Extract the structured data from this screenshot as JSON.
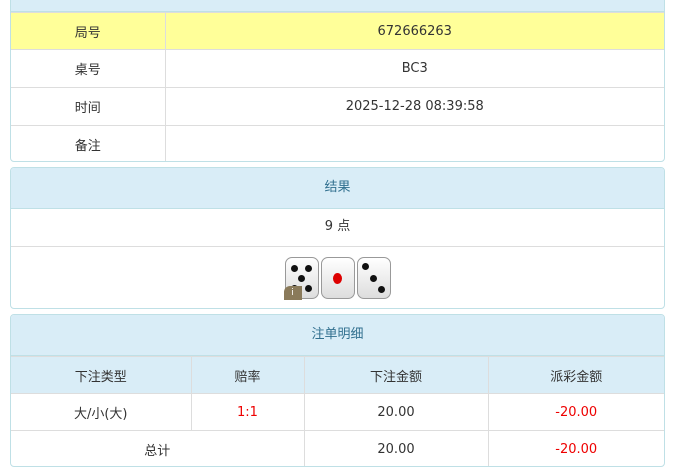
{
  "info": {
    "rows": [
      {
        "label": "局号",
        "value": "672666263"
      },
      {
        "label": "桌号",
        "value": "BC3"
      },
      {
        "label": "时间",
        "value": "2025-12-28 08:39:58"
      },
      {
        "label": "备注",
        "value": ""
      }
    ]
  },
  "result": {
    "title": "结果",
    "points": "9 点",
    "dice": [
      5,
      1,
      3
    ],
    "badge": "i"
  },
  "bets": {
    "title": "注单明细",
    "headers": [
      "下注类型",
      "赔率",
      "下注金额",
      "派彩金额"
    ],
    "rows": [
      {
        "type": "大/小(大)",
        "odds": "1:1",
        "amount": "20.00",
        "payout": "-20.00"
      }
    ],
    "total": {
      "label": "总计",
      "amount": "20.00",
      "payout": "-20.00"
    }
  },
  "colors": {
    "header": "#d9edf7",
    "highlight": "#ffff99",
    "negative": "#e00000"
  }
}
